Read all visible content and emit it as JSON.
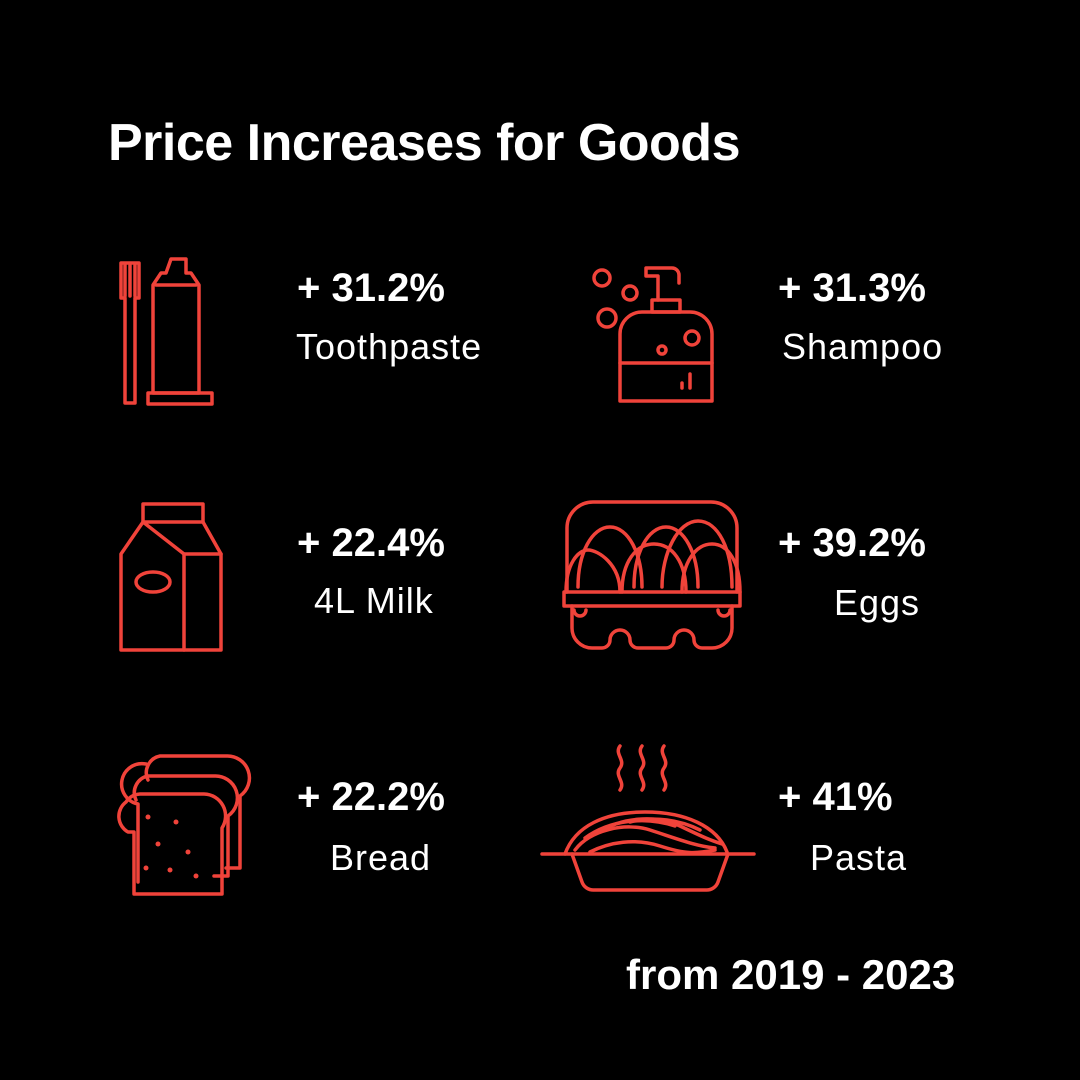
{
  "title": "Price Increases for Goods",
  "footer": "from 2019 - 2023",
  "colors": {
    "background": "#000000",
    "accent": "#f0433a",
    "text": "#ffffff"
  },
  "chart_data": {
    "type": "table",
    "title": "Price Increases for Goods",
    "period": "from 2019 - 2023",
    "unit": "%",
    "items": [
      {
        "label": "+ 31.2%",
        "name": "Toothpaste",
        "value": 31.2,
        "icon": "toothpaste-icon"
      },
      {
        "label": "+ 31.3%",
        "name": "Shampoo",
        "value": 31.3,
        "icon": "shampoo-icon"
      },
      {
        "label": "+ 22.4%",
        "name": "4L Milk",
        "value": 22.4,
        "icon": "milk-carton-icon"
      },
      {
        "label": "+ 39.2%",
        "name": "Eggs",
        "value": 39.2,
        "icon": "egg-carton-icon"
      },
      {
        "label": "+ 22.2%",
        "name": "Bread",
        "value": 22.2,
        "icon": "bread-icon"
      },
      {
        "label": "+ 41%",
        "name": "Pasta",
        "value": 41,
        "icon": "pasta-icon"
      }
    ]
  }
}
